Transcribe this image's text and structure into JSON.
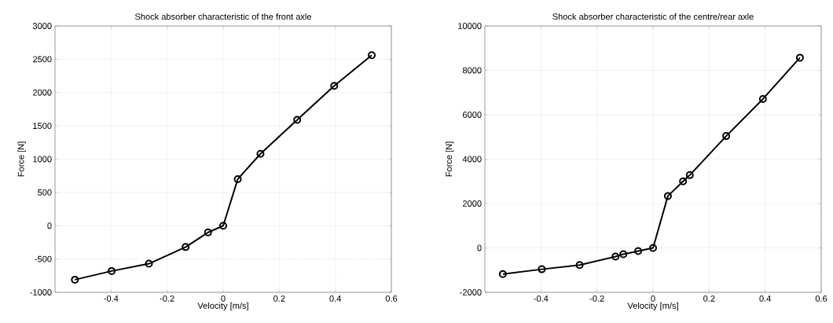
{
  "chart_data": [
    {
      "type": "line",
      "title": "Shock absorber characteristic of the front axle",
      "xlabel": "Velocity [m/s]",
      "ylabel": "Force [N]",
      "x": [
        -0.529,
        -0.398,
        -0.265,
        -0.134,
        -0.054,
        0,
        0.052,
        0.133,
        0.264,
        0.396,
        0.53
      ],
      "series": [
        {
          "color": "#000000",
          "values": [
            -810,
            -680,
            -570,
            -320,
            -100,
            0,
            700,
            1080,
            1590,
            2100,
            2560
          ]
        }
      ],
      "xlim": [
        -0.6,
        0.6
      ],
      "xticks": [
        -0.4,
        -0.2,
        0,
        0.2,
        0.4,
        0.6
      ],
      "ylim": [
        -1000,
        3000
      ],
      "yticks": [
        -1000,
        -500,
        0,
        500,
        1000,
        1500,
        2000,
        2500,
        3000
      ],
      "grid": true,
      "marker": "circle",
      "line_style": "solid"
    },
    {
      "type": "line",
      "title": "Shock absorber characteristic of the centre/rear axle",
      "xlabel": "Velocity [m/s]",
      "ylabel": "Force [N]",
      "x": [
        -0.536,
        -0.397,
        -0.262,
        -0.134,
        -0.106,
        -0.053,
        0,
        0.053,
        0.107,
        0.131,
        0.261,
        0.392,
        0.524
      ],
      "series": [
        {
          "color": "#000000",
          "values": [
            -1180,
            -960,
            -770,
            -390,
            -280,
            -140,
            0,
            2340,
            3000,
            3280,
            5040,
            6710,
            8570
          ]
        }
      ],
      "xlim": [
        -0.6,
        0.6
      ],
      "xticks": [
        -0.4,
        -0.2,
        0,
        0.2,
        0.4,
        0.6
      ],
      "ylim": [
        -2000,
        10000
      ],
      "yticks": [
        -2000,
        0,
        2000,
        4000,
        6000,
        8000,
        10000
      ],
      "grid": true,
      "marker": "circle",
      "line_style": "solid"
    }
  ]
}
